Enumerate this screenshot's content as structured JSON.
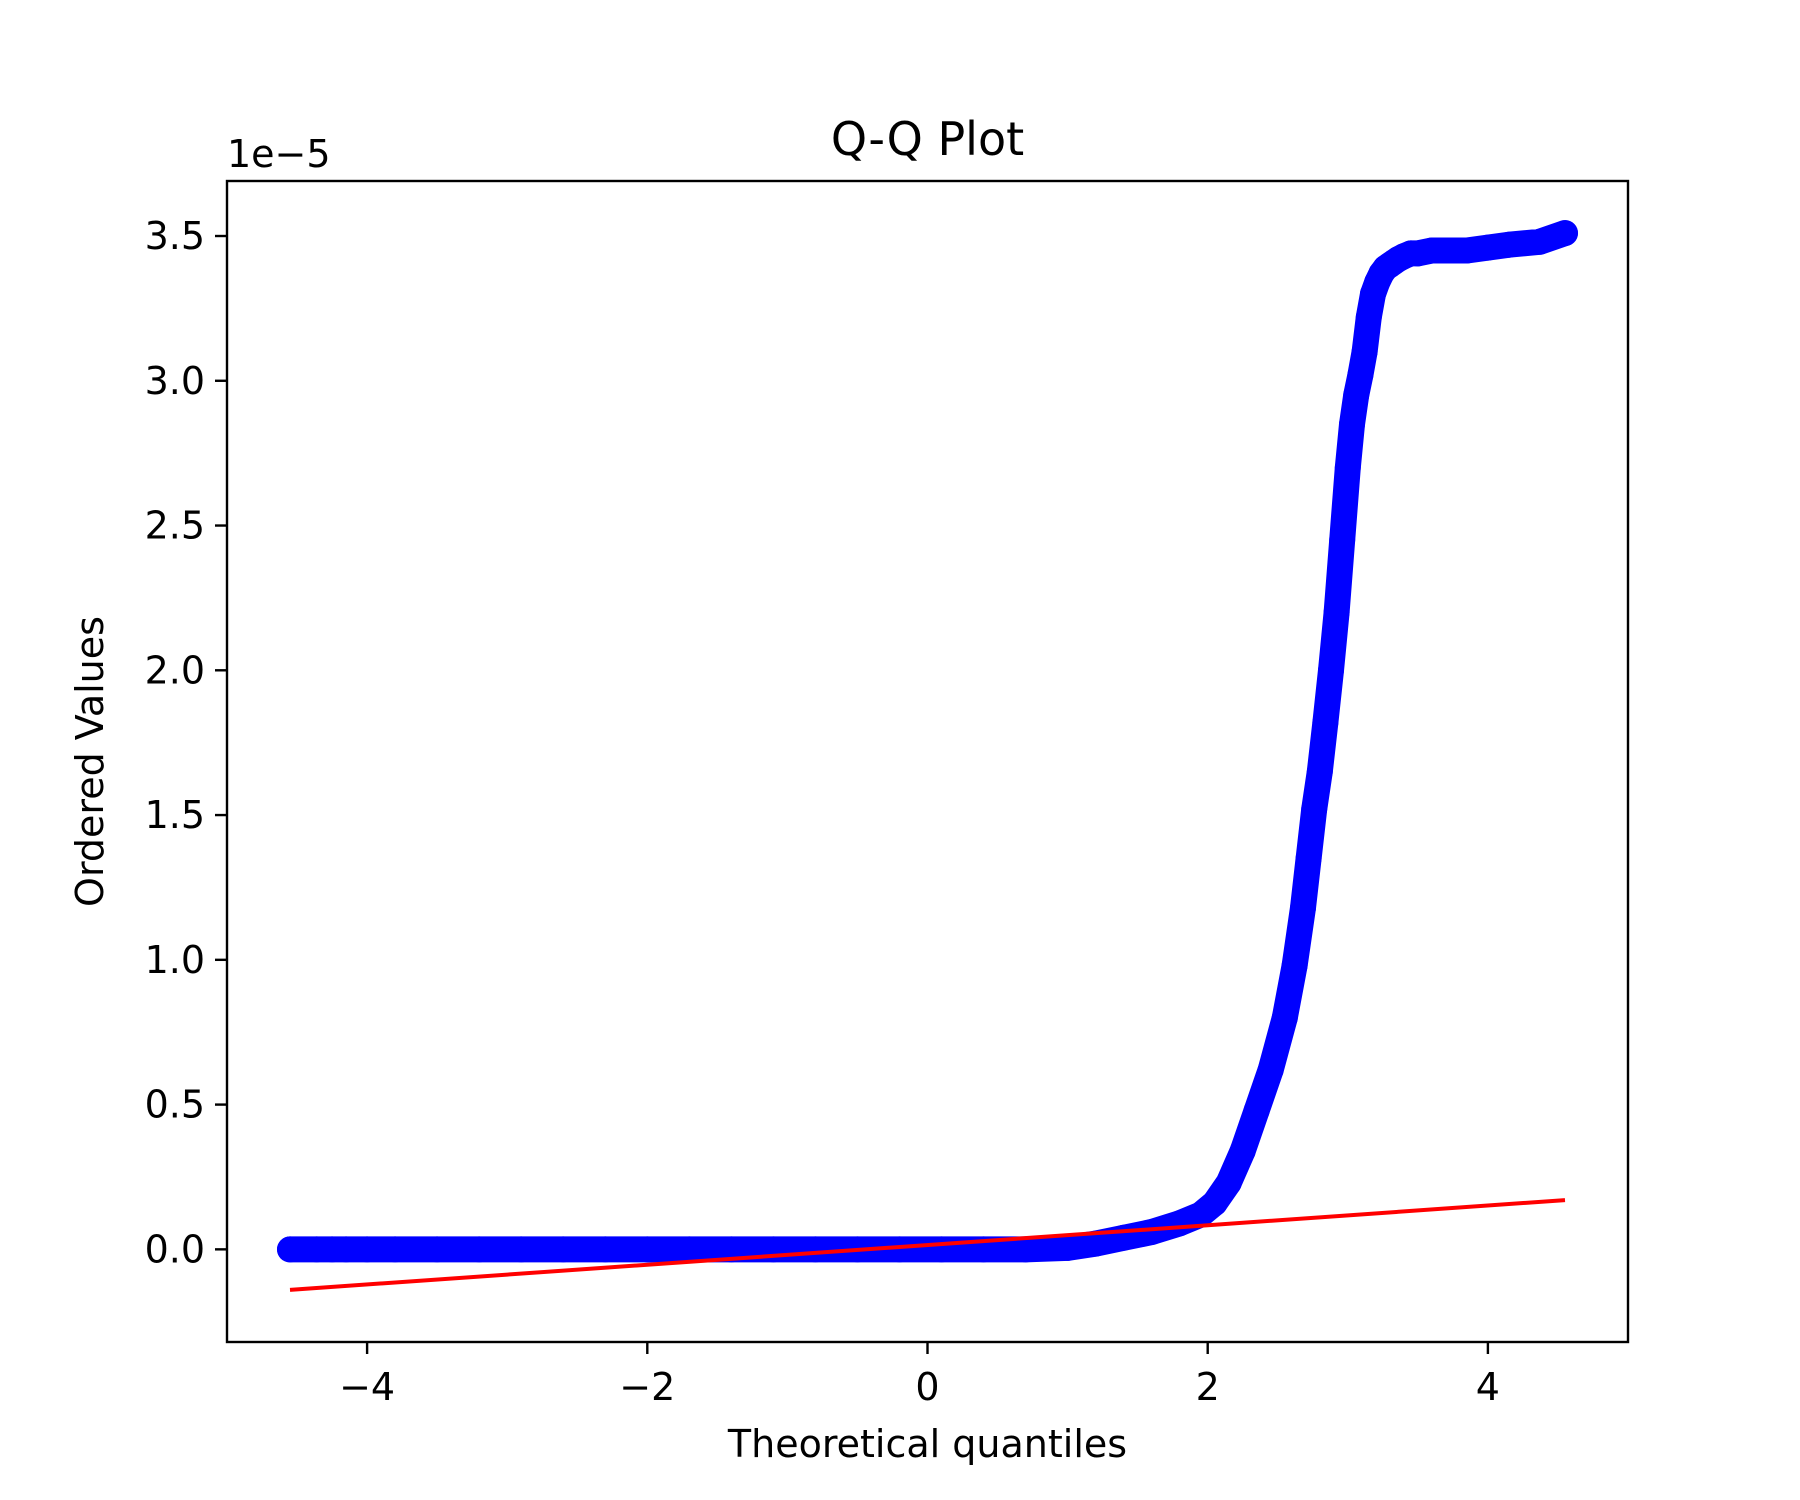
{
  "chart_data": {
    "type": "scatter",
    "title": "Q-Q Plot",
    "xlabel": "Theoretical quantiles",
    "ylabel": "Ordered Values",
    "y_offset_label": "1e−5",
    "xlim": [
      -5.0,
      5.0
    ],
    "ylim": [
      -0.32,
      3.69
    ],
    "xticks": [
      -4,
      -2,
      0,
      2,
      4
    ],
    "xtick_labels": [
      "−4",
      "−2",
      "0",
      "2",
      "4"
    ],
    "yticks": [
      0.0,
      0.5,
      1.0,
      1.5,
      2.0,
      2.5,
      3.0,
      3.5
    ],
    "ytick_labels": [
      "0.0",
      "0.5",
      "1.0",
      "1.5",
      "2.0",
      "2.5",
      "3.0",
      "3.5"
    ],
    "grid": false,
    "series": [
      {
        "kind": "points",
        "color": "#0000ff",
        "x": [
          -4.55,
          -4.36,
          -4.25,
          -4.15,
          -4.0,
          -3.8,
          -3.5,
          -3.2,
          -2.9,
          -2.6,
          -2.3,
          -2.0,
          -1.7,
          -1.4,
          -1.1,
          -0.8,
          -0.5,
          -0.2,
          0.1,
          0.4,
          0.7,
          1.0,
          1.2,
          1.4,
          1.6,
          1.8,
          1.95,
          2.05,
          2.15,
          2.25,
          2.35,
          2.45,
          2.55,
          2.62,
          2.68,
          2.72,
          2.76,
          2.8,
          2.84,
          2.88,
          2.92,
          2.96,
          3.0,
          3.03,
          3.06,
          3.09,
          3.12,
          3.15,
          3.18,
          3.21,
          3.24,
          3.27,
          3.3,
          3.33,
          3.36,
          3.4,
          3.45,
          3.5,
          3.6,
          3.7,
          3.85,
          4.0,
          4.15,
          4.37,
          4.55
        ],
        "y": [
          0.0,
          0.0,
          0.0,
          0.0,
          0.0,
          0.0,
          0.0,
          0.0,
          0.0,
          0.0,
          0.0,
          0.0,
          0.0,
          0.0,
          0.0,
          0.0,
          0.0,
          0.0,
          0.0,
          0.0,
          0.0,
          0.005,
          0.02,
          0.04,
          0.06,
          0.09,
          0.12,
          0.16,
          0.23,
          0.34,
          0.48,
          0.62,
          0.8,
          0.98,
          1.18,
          1.35,
          1.52,
          1.65,
          1.82,
          2.0,
          2.2,
          2.45,
          2.7,
          2.85,
          2.95,
          3.02,
          3.1,
          3.22,
          3.3,
          3.34,
          3.37,
          3.39,
          3.4,
          3.41,
          3.42,
          3.43,
          3.44,
          3.44,
          3.45,
          3.45,
          3.45,
          3.46,
          3.47,
          3.48,
          3.51
        ]
      },
      {
        "kind": "fit-line",
        "color": "#ff0000",
        "x": [
          -4.55,
          4.55
        ],
        "y": [
          -0.14,
          0.17
        ]
      }
    ]
  }
}
